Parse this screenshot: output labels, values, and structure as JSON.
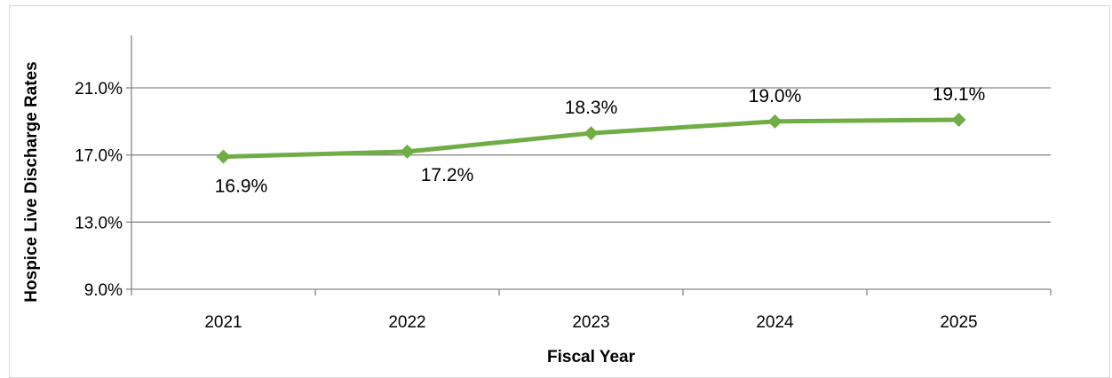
{
  "chart_data": {
    "type": "line",
    "title": "",
    "xlabel": "Fiscal Year",
    "ylabel": "Hospice Live Discharge Rates",
    "categories": [
      "2021",
      "2022",
      "2023",
      "2024",
      "2025"
    ],
    "series": [
      {
        "values": [
          16.9,
          17.2,
          18.3,
          19.0,
          19.1
        ],
        "labels": [
          "16.9%",
          "17.2%",
          "18.3%",
          "19.0%",
          "19.1%"
        ],
        "color": "#70ad47",
        "marker": "diamond"
      }
    ],
    "ylim": [
      9.0,
      21.0
    ],
    "yticks": [
      9.0,
      13.0,
      17.0,
      21.0
    ],
    "ytick_labels": [
      "9.0%",
      "13.0%",
      "17.0%",
      "21.0%"
    ],
    "grid": true,
    "legend": "none"
  }
}
